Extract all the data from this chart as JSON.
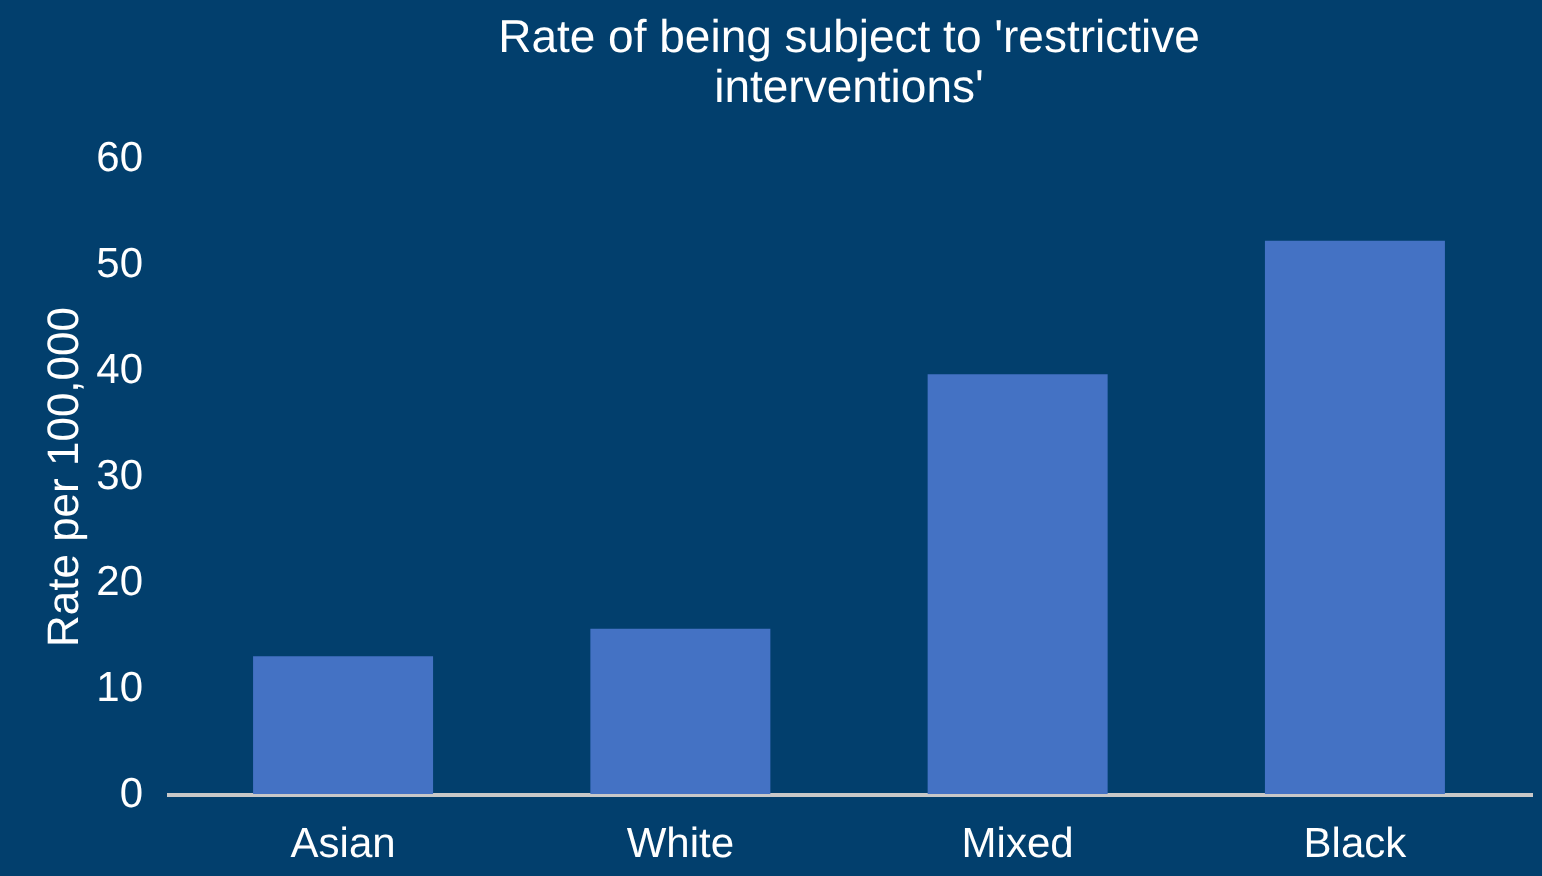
{
  "chart_data": {
    "type": "bar",
    "title": "Rate of being subject to 'restrictive interventions'",
    "ylabel": "Rate per 100,000",
    "categories": [
      "Asian",
      "White",
      "Mixed",
      "Black"
    ],
    "values": [
      13,
      15.6,
      39.6,
      52.2
    ],
    "color": "#4472c4",
    "ylim": [
      0,
      60
    ],
    "yticks": [
      0,
      10,
      20,
      30,
      40,
      50,
      60
    ],
    "grid": false
  }
}
